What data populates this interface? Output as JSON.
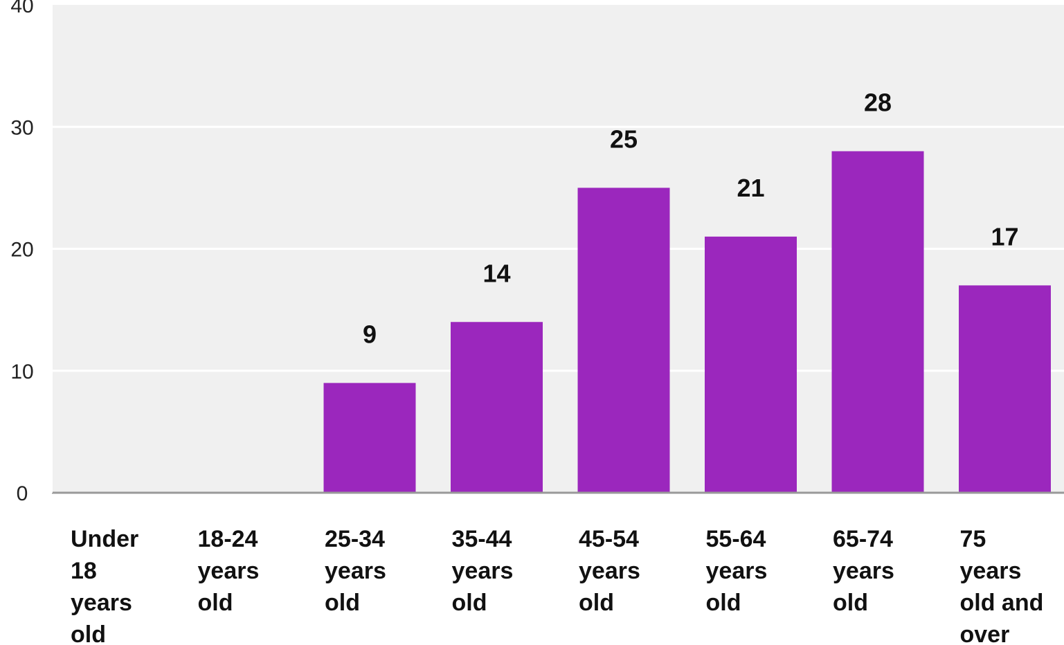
{
  "chart_data": {
    "type": "bar",
    "categories": [
      [
        "Under",
        "18",
        "years",
        "old"
      ],
      [
        "18-24",
        "years",
        "old"
      ],
      [
        "25-34",
        "years",
        "old"
      ],
      [
        "35-44",
        "years",
        "old"
      ],
      [
        "45-54",
        "years",
        "old"
      ],
      [
        "55-64",
        "years",
        "old"
      ],
      [
        "65-74",
        "years",
        "old"
      ],
      [
        "75",
        "years",
        "old and",
        "over"
      ]
    ],
    "values": [
      0,
      0,
      9,
      14,
      25,
      21,
      28,
      17
    ],
    "value_labels": [
      "",
      "",
      "9",
      "14",
      "25",
      "21",
      "28",
      "17"
    ],
    "ylim": [
      0,
      40
    ],
    "yticks": [
      0,
      10,
      20,
      30,
      40
    ],
    "ytick_labels": [
      "0",
      "10",
      "20",
      "30",
      "40"
    ],
    "grid": true,
    "colors": {
      "bar": "#9b27bd",
      "plot_background": "#f0f0f0",
      "gridline": "#ffffff",
      "axis": "#999999"
    }
  }
}
